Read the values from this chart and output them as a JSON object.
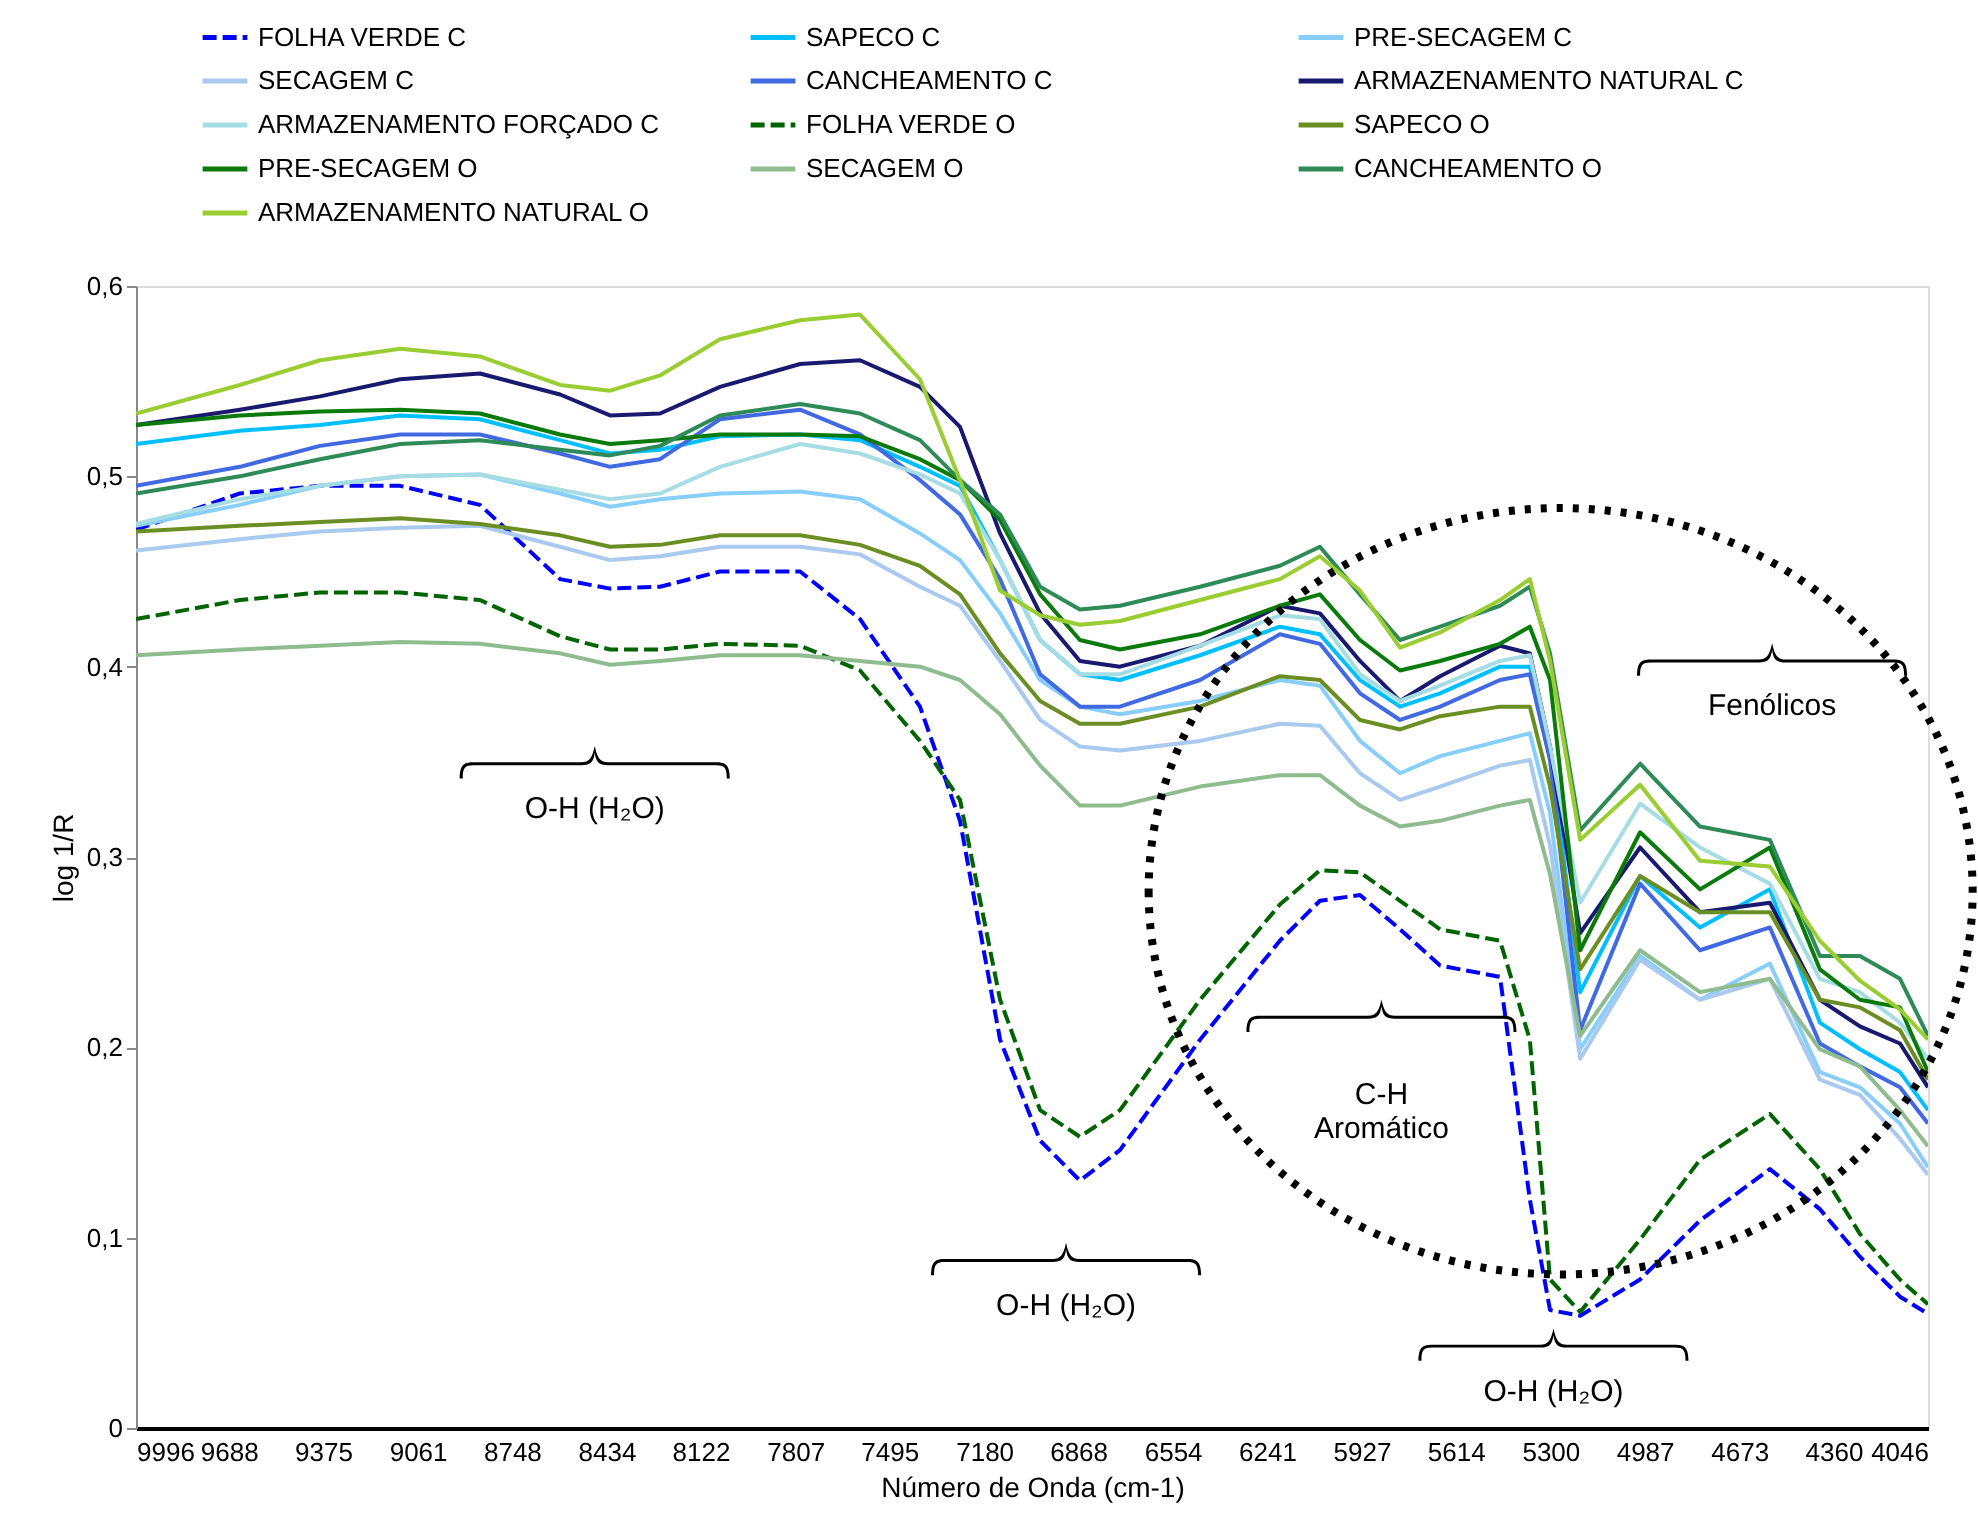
{
  "chart_data": {
    "type": "line",
    "xlabel": "Número de Onda (cm-1)",
    "ylabel": "log 1/R",
    "x": [
      9996,
      9651,
      9385,
      9119,
      8854,
      8588,
      8422,
      8256,
      8057,
      7791,
      7592,
      7393,
      7260,
      7127,
      6994,
      6862,
      6729,
      6463,
      6198,
      6065,
      5932,
      5799,
      5666,
      5467,
      5368,
      5301,
      5201,
      5002,
      4803,
      4571,
      4405,
      4272,
      4139,
      4046
    ],
    "xlim": [
      9996,
      4046
    ],
    "xticks": [
      9996,
      9688,
      9375,
      9061,
      8748,
      8434,
      8122,
      7807,
      7495,
      7180,
      6868,
      6554,
      6241,
      5927,
      5614,
      5300,
      4987,
      4673,
      4360,
      4046
    ],
    "ylim": [
      0,
      0.6
    ],
    "yticks": [
      0,
      {
        "value": 0.1,
        "label": "0,1"
      },
      {
        "value": 0.2,
        "label": "0,2"
      },
      {
        "value": 0.3,
        "label": "0,3"
      },
      {
        "value": 0.4,
        "label": "0,4"
      },
      {
        "value": 0.5,
        "label": "0,5"
      },
      {
        "value": 0.6,
        "label": "0,6"
      }
    ],
    "grid": false,
    "legend": "top",
    "series": [
      {
        "name": "FOLHA VERDE C",
        "color": "#0000ff",
        "line_style": "dashed",
        "values": [
          0.472,
          0.491,
          0.495,
          0.495,
          0.485,
          0.446,
          0.441,
          0.442,
          0.45,
          0.45,
          0.425,
          0.379,
          0.319,
          0.204,
          0.151,
          0.13,
          0.146,
          0.204,
          0.256,
          0.277,
          0.28,
          0.262,
          0.243,
          0.237,
          0.12,
          0.062,
          0.059,
          0.078,
          0.109,
          0.136,
          0.115,
          0.09,
          0.069,
          0.06
        ]
      },
      {
        "name": "SAPECO C",
        "color": "#00bfff",
        "line_style": "solid",
        "values": [
          0.517,
          0.524,
          0.527,
          0.532,
          0.53,
          0.519,
          0.512,
          0.514,
          0.521,
          0.522,
          0.519,
          0.505,
          0.495,
          0.456,
          0.414,
          0.396,
          0.393,
          0.406,
          0.421,
          0.417,
          0.393,
          0.379,
          0.386,
          0.4,
          0.4,
          0.358,
          0.229,
          0.29,
          0.263,
          0.283,
          0.213,
          0.199,
          0.187,
          0.167
        ]
      },
      {
        "name": "PRE-SECAGEM C",
        "color": "#87cefa",
        "line_style": "solid",
        "values": [
          0.474,
          0.485,
          0.495,
          0.5,
          0.501,
          0.491,
          0.484,
          0.488,
          0.491,
          0.492,
          0.488,
          0.47,
          0.456,
          0.428,
          0.393,
          0.379,
          0.375,
          0.382,
          0.393,
          0.39,
          0.361,
          0.344,
          0.353,
          0.361,
          0.365,
          0.323,
          0.199,
          0.248,
          0.225,
          0.244,
          0.187,
          0.179,
          0.16,
          0.137
        ]
      },
      {
        "name": "SECAGEM C",
        "color": "#a9c9ee",
        "line_style": "solid",
        "values": [
          0.461,
          0.467,
          0.471,
          0.473,
          0.474,
          0.463,
          0.456,
          0.458,
          0.463,
          0.463,
          0.459,
          0.442,
          0.432,
          0.403,
          0.372,
          0.358,
          0.356,
          0.361,
          0.37,
          0.369,
          0.344,
          0.33,
          0.337,
          0.348,
          0.351,
          0.306,
          0.194,
          0.246,
          0.225,
          0.236,
          0.183,
          0.175,
          0.152,
          0.133
        ]
      },
      {
        "name": "CANCHEAMENTO C",
        "color": "#4169e1",
        "line_style": "solid",
        "values": [
          0.495,
          0.505,
          0.516,
          0.522,
          0.522,
          0.512,
          0.505,
          0.509,
          0.53,
          0.535,
          0.522,
          0.498,
          0.48,
          0.446,
          0.396,
          0.379,
          0.379,
          0.393,
          0.417,
          0.412,
          0.386,
          0.372,
          0.379,
          0.393,
          0.396,
          0.351,
          0.209,
          0.286,
          0.251,
          0.263,
          0.202,
          0.19,
          0.179,
          0.16
        ]
      },
      {
        "name": "ARMAZENAMENTO NATURAL C",
        "color": "#191970",
        "line_style": "solid",
        "values": [
          0.527,
          0.535,
          0.542,
          0.551,
          0.554,
          0.543,
          0.532,
          0.533,
          0.547,
          0.559,
          0.561,
          0.547,
          0.526,
          0.47,
          0.428,
          0.403,
          0.4,
          0.411,
          0.432,
          0.428,
          0.403,
          0.382,
          0.395,
          0.411,
          0.407,
          0.358,
          0.26,
          0.305,
          0.271,
          0.276,
          0.225,
          0.211,
          0.202,
          0.179
        ]
      },
      {
        "name": "ARMAZENAMENTO FORÇADO C",
        "color": "#a6dde4",
        "line_style": "solid",
        "values": [
          0.475,
          0.488,
          0.495,
          0.5,
          0.501,
          0.493,
          0.488,
          0.491,
          0.505,
          0.517,
          0.512,
          0.501,
          0.491,
          0.456,
          0.414,
          0.396,
          0.396,
          0.411,
          0.427,
          0.425,
          0.396,
          0.382,
          0.39,
          0.403,
          0.406,
          0.358,
          0.276,
          0.328,
          0.305,
          0.286,
          0.236,
          0.229,
          0.213,
          0.194
        ]
      },
      {
        "name": "FOLHA VERDE O",
        "color": "#006400",
        "line_style": "dashed",
        "values": [
          0.425,
          0.435,
          0.439,
          0.439,
          0.435,
          0.416,
          0.409,
          0.409,
          0.412,
          0.411,
          0.398,
          0.361,
          0.33,
          0.225,
          0.167,
          0.153,
          0.167,
          0.225,
          0.275,
          0.293,
          0.292,
          0.277,
          0.262,
          0.256,
          0.204,
          0.078,
          0.061,
          0.099,
          0.141,
          0.165,
          0.136,
          0.102,
          0.078,
          0.065
        ]
      },
      {
        "name": "SAPECO O",
        "color": "#6b8e23",
        "line_style": "solid",
        "values": [
          0.471,
          0.474,
          0.476,
          0.478,
          0.475,
          0.469,
          0.463,
          0.464,
          0.469,
          0.469,
          0.464,
          0.453,
          0.438,
          0.407,
          0.382,
          0.37,
          0.37,
          0.379,
          0.395,
          0.393,
          0.372,
          0.367,
          0.374,
          0.379,
          0.379,
          0.337,
          0.241,
          0.29,
          0.271,
          0.271,
          0.225,
          0.221,
          0.209,
          0.183
        ]
      },
      {
        "name": "PRE-SECAGEM O",
        "color": "#0a7a0a",
        "line_style": "solid",
        "values": [
          0.527,
          0.532,
          0.534,
          0.535,
          0.533,
          0.522,
          0.517,
          0.519,
          0.522,
          0.522,
          0.521,
          0.509,
          0.498,
          0.477,
          0.438,
          0.414,
          0.409,
          0.417,
          0.432,
          0.438,
          0.414,
          0.398,
          0.403,
          0.412,
          0.421,
          0.393,
          0.251,
          0.313,
          0.283,
          0.305,
          0.241,
          0.225,
          0.221,
          0.187
        ]
      },
      {
        "name": "SECAGEM O",
        "color": "#8fbc8f",
        "line_style": "solid",
        "values": [
          0.406,
          0.409,
          0.411,
          0.413,
          0.412,
          0.407,
          0.401,
          0.403,
          0.406,
          0.406,
          0.403,
          0.4,
          0.393,
          0.375,
          0.348,
          0.327,
          0.327,
          0.337,
          0.343,
          0.343,
          0.327,
          0.316,
          0.319,
          0.327,
          0.33,
          0.291,
          0.206,
          0.251,
          0.229,
          0.236,
          0.199,
          0.19,
          0.167,
          0.148
        ]
      },
      {
        "name": "CANCHEAMENTO O",
        "color": "#2e8b57",
        "line_style": "solid",
        "values": [
          0.491,
          0.5,
          0.509,
          0.517,
          0.519,
          0.514,
          0.511,
          0.516,
          0.532,
          0.538,
          0.533,
          0.519,
          0.498,
          0.48,
          0.442,
          0.43,
          0.432,
          0.442,
          0.453,
          0.463,
          0.438,
          0.414,
          0.421,
          0.432,
          0.442,
          0.407,
          0.314,
          0.349,
          0.316,
          0.309,
          0.248,
          0.248,
          0.236,
          0.206
        ]
      },
      {
        "name": "ARMAZENAMENTO NATURAL O",
        "color": "#9acd32",
        "line_style": "solid",
        "values": [
          0.533,
          0.548,
          0.561,
          0.567,
          0.563,
          0.548,
          0.545,
          0.553,
          0.572,
          0.582,
          0.585,
          0.551,
          0.498,
          0.44,
          0.427,
          0.422,
          0.424,
          0.435,
          0.446,
          0.458,
          0.44,
          0.41,
          0.418,
          0.435,
          0.446,
          0.403,
          0.309,
          0.338,
          0.298,
          0.295,
          0.256,
          0.235,
          0.22,
          0.204
        ]
      }
    ],
    "annotations": [
      "O-H (H₂O)",
      "O-H (H₂O)",
      "C-H\nAromático",
      "O-H (H₂O)",
      "Fenólicos"
    ]
  }
}
